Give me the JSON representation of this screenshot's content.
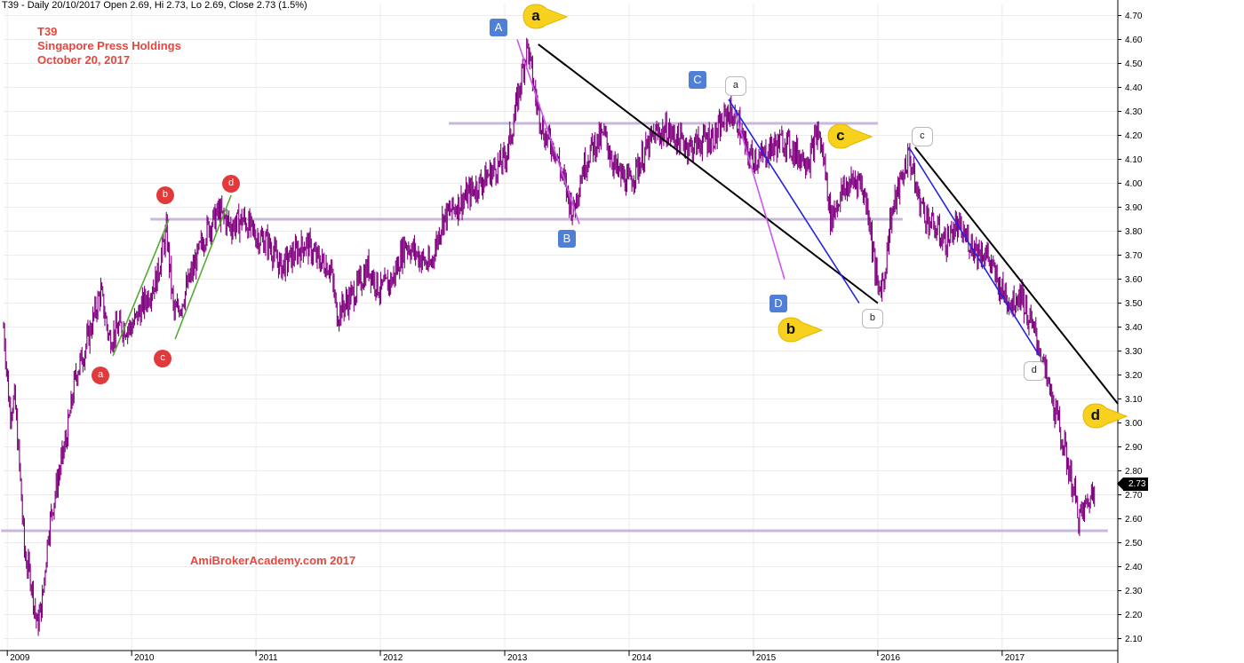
{
  "header": {
    "text": "T39 - Daily 20/10/2017 Open 2.69, Hi 2.73, Lo 2.69, Close 2.73 (1.5%)"
  },
  "title_block": {
    "symbol": "T39",
    "company": "Singapore Press Holdings",
    "date": "October 20, 2017"
  },
  "watermark": "AmiBrokerAcademy.com  2017",
  "last_price": "2.73",
  "chart_data": {
    "type": "line",
    "style": "ohlc-bars",
    "series_color": "#800080",
    "x_tick_labels": [
      "2009",
      "2010",
      "2011",
      "2012",
      "2013",
      "2014",
      "2015",
      "2016",
      "2017"
    ],
    "x_range": [
      2008.97,
      2017.93
    ],
    "ylim": [
      2.05,
      4.75
    ],
    "y_tick_labels": [
      "2.10",
      "2.20",
      "2.30",
      "2.40",
      "2.50",
      "2.60",
      "2.70",
      "2.80",
      "2.90",
      "3.00",
      "3.10",
      "3.20",
      "3.30",
      "3.40",
      "3.50",
      "3.60",
      "3.70",
      "3.80",
      "3.90",
      "4.00",
      "4.10",
      "4.20",
      "4.30",
      "4.40",
      "4.50",
      "4.60",
      "4.70"
    ],
    "grid": true,
    "close": [
      {
        "x": 2008.97,
        "y": 3.4
      },
      {
        "x": 2009.02,
        "y": 3.05
      },
      {
        "x": 2009.06,
        "y": 3.1
      },
      {
        "x": 2009.1,
        "y": 2.8
      },
      {
        "x": 2009.14,
        "y": 2.45
      },
      {
        "x": 2009.19,
        "y": 2.35
      },
      {
        "x": 2009.24,
        "y": 2.15
      },
      {
        "x": 2009.28,
        "y": 2.25
      },
      {
        "x": 2009.33,
        "y": 2.55
      },
      {
        "x": 2009.4,
        "y": 2.75
      },
      {
        "x": 2009.48,
        "y": 2.95
      },
      {
        "x": 2009.55,
        "y": 3.2
      },
      {
        "x": 2009.62,
        "y": 3.3
      },
      {
        "x": 2009.7,
        "y": 3.45
      },
      {
        "x": 2009.75,
        "y": 3.55
      },
      {
        "x": 2009.82,
        "y": 3.35
      },
      {
        "x": 2009.9,
        "y": 3.4
      },
      {
        "x": 2010.0,
        "y": 3.4
      },
      {
        "x": 2010.1,
        "y": 3.5
      },
      {
        "x": 2010.2,
        "y": 3.6
      },
      {
        "x": 2010.28,
        "y": 3.8
      },
      {
        "x": 2010.34,
        "y": 3.45
      },
      {
        "x": 2010.4,
        "y": 3.5
      },
      {
        "x": 2010.5,
        "y": 3.65
      },
      {
        "x": 2010.6,
        "y": 3.8
      },
      {
        "x": 2010.7,
        "y": 3.88
      },
      {
        "x": 2010.8,
        "y": 3.82
      },
      {
        "x": 2010.9,
        "y": 3.85
      },
      {
        "x": 2011.0,
        "y": 3.78
      },
      {
        "x": 2011.1,
        "y": 3.75
      },
      {
        "x": 2011.2,
        "y": 3.65
      },
      {
        "x": 2011.3,
        "y": 3.7
      },
      {
        "x": 2011.4,
        "y": 3.75
      },
      {
        "x": 2011.5,
        "y": 3.68
      },
      {
        "x": 2011.6,
        "y": 3.65
      },
      {
        "x": 2011.65,
        "y": 3.45
      },
      {
        "x": 2011.72,
        "y": 3.5
      },
      {
        "x": 2011.8,
        "y": 3.55
      },
      {
        "x": 2011.9,
        "y": 3.65
      },
      {
        "x": 2012.0,
        "y": 3.55
      },
      {
        "x": 2012.1,
        "y": 3.6
      },
      {
        "x": 2012.2,
        "y": 3.75
      },
      {
        "x": 2012.3,
        "y": 3.7
      },
      {
        "x": 2012.4,
        "y": 3.65
      },
      {
        "x": 2012.5,
        "y": 3.85
      },
      {
        "x": 2012.6,
        "y": 3.9
      },
      {
        "x": 2012.7,
        "y": 3.95
      },
      {
        "x": 2012.8,
        "y": 4.0
      },
      {
        "x": 2012.9,
        "y": 4.05
      },
      {
        "x": 2013.0,
        "y": 4.1
      },
      {
        "x": 2013.05,
        "y": 4.2
      },
      {
        "x": 2013.12,
        "y": 4.4
      },
      {
        "x": 2013.18,
        "y": 4.58
      },
      {
        "x": 2013.25,
        "y": 4.35
      },
      {
        "x": 2013.32,
        "y": 4.2
      },
      {
        "x": 2013.4,
        "y": 4.15
      },
      {
        "x": 2013.48,
        "y": 4.0
      },
      {
        "x": 2013.55,
        "y": 3.88
      },
      {
        "x": 2013.62,
        "y": 4.05
      },
      {
        "x": 2013.7,
        "y": 4.15
      },
      {
        "x": 2013.8,
        "y": 4.2
      },
      {
        "x": 2013.9,
        "y": 4.05
      },
      {
        "x": 2014.0,
        "y": 4.0
      },
      {
        "x": 2014.1,
        "y": 4.1
      },
      {
        "x": 2014.2,
        "y": 4.2
      },
      {
        "x": 2014.3,
        "y": 4.22
      },
      {
        "x": 2014.4,
        "y": 4.18
      },
      {
        "x": 2014.5,
        "y": 4.15
      },
      {
        "x": 2014.6,
        "y": 4.18
      },
      {
        "x": 2014.7,
        "y": 4.2
      },
      {
        "x": 2014.8,
        "y": 4.3
      },
      {
        "x": 2014.88,
        "y": 4.25
      },
      {
        "x": 2014.95,
        "y": 4.12
      },
      {
        "x": 2015.05,
        "y": 4.1
      },
      {
        "x": 2015.15,
        "y": 4.15
      },
      {
        "x": 2015.25,
        "y": 4.18
      },
      {
        "x": 2015.35,
        "y": 4.12
      },
      {
        "x": 2015.45,
        "y": 4.1
      },
      {
        "x": 2015.52,
        "y": 4.22
      },
      {
        "x": 2015.58,
        "y": 4.05
      },
      {
        "x": 2015.62,
        "y": 3.85
      },
      {
        "x": 2015.7,
        "y": 3.95
      },
      {
        "x": 2015.78,
        "y": 4.0
      },
      {
        "x": 2015.85,
        "y": 4.02
      },
      {
        "x": 2015.92,
        "y": 3.9
      },
      {
        "x": 2016.0,
        "y": 3.55
      },
      {
        "x": 2016.05,
        "y": 3.6
      },
      {
        "x": 2016.1,
        "y": 3.85
      },
      {
        "x": 2016.18,
        "y": 4.0
      },
      {
        "x": 2016.25,
        "y": 4.12
      },
      {
        "x": 2016.32,
        "y": 3.95
      },
      {
        "x": 2016.4,
        "y": 3.85
      },
      {
        "x": 2016.48,
        "y": 3.8
      },
      {
        "x": 2016.55,
        "y": 3.75
      },
      {
        "x": 2016.62,
        "y": 3.82
      },
      {
        "x": 2016.7,
        "y": 3.78
      },
      {
        "x": 2016.8,
        "y": 3.72
      },
      {
        "x": 2016.88,
        "y": 3.7
      },
      {
        "x": 2016.95,
        "y": 3.6
      },
      {
        "x": 2017.0,
        "y": 3.55
      },
      {
        "x": 2017.08,
        "y": 3.5
      },
      {
        "x": 2017.15,
        "y": 3.55
      },
      {
        "x": 2017.2,
        "y": 3.45
      },
      {
        "x": 2017.28,
        "y": 3.35
      },
      {
        "x": 2017.35,
        "y": 3.2
      },
      {
        "x": 2017.45,
        "y": 3.0
      },
      {
        "x": 2017.55,
        "y": 2.78
      },
      {
        "x": 2017.62,
        "y": 2.6
      },
      {
        "x": 2017.7,
        "y": 2.68
      },
      {
        "x": 2017.75,
        "y": 2.73
      }
    ],
    "horizontal_lines": [
      {
        "y": 3.85,
        "x_start": 2010.15,
        "x_end": 2016.2
      },
      {
        "y": 4.25,
        "x_start": 2012.55,
        "x_end": 2016.0
      },
      {
        "y": 2.55,
        "x_start": 2008.95,
        "x_end": 2017.85
      }
    ],
    "trend_lines": [
      {
        "color": "#000000",
        "width": 2,
        "from": [
          2013.27,
          4.58
        ],
        "to": [
          2016.0,
          3.5
        ]
      },
      {
        "color": "#000000",
        "width": 2,
        "from": [
          2016.3,
          4.15
        ],
        "to": [
          2017.93,
          3.08
        ]
      },
      {
        "color": "#2323e0",
        "width": 1.6,
        "from": [
          2014.8,
          4.35
        ],
        "to": [
          2015.85,
          3.5
        ]
      },
      {
        "color": "#2323e0",
        "width": 1.6,
        "from": [
          2016.25,
          4.15
        ],
        "to": [
          2017.3,
          3.28
        ]
      },
      {
        "color": "#cc55ee",
        "width": 1.6,
        "from": [
          2013.1,
          4.6
        ],
        "to": [
          2013.6,
          3.83
        ]
      },
      {
        "color": "#cc55ee",
        "width": 1.6,
        "from": [
          2014.85,
          4.3
        ],
        "to": [
          2015.25,
          3.6
        ]
      },
      {
        "color": "#55aa33",
        "width": 1.6,
        "from": [
          2009.85,
          3.28
        ],
        "to": [
          2010.3,
          3.85
        ]
      },
      {
        "color": "#55aa33",
        "width": 1.6,
        "from": [
          2010.35,
          3.35
        ],
        "to": [
          2010.8,
          3.95
        ]
      }
    ],
    "annotations": [
      {
        "text": "A",
        "style": "blue-box",
        "x": 2012.95,
        "y": 4.65
      },
      {
        "text": "B",
        "style": "blue-box",
        "x": 2013.5,
        "y": 3.77
      },
      {
        "text": "C",
        "style": "blue-box",
        "x": 2014.55,
        "y": 4.43
      },
      {
        "text": "D",
        "style": "blue-box",
        "x": 2015.2,
        "y": 3.5
      },
      {
        "text": "a",
        "style": "yellow-bubble",
        "x": 2013.25,
        "y": 4.7
      },
      {
        "text": "b",
        "style": "yellow-bubble",
        "x": 2015.3,
        "y": 3.39
      },
      {
        "text": "c",
        "style": "yellow-bubble",
        "x": 2015.7,
        "y": 4.2
      },
      {
        "text": "d",
        "style": "yellow-bubble",
        "x": 2017.75,
        "y": 3.03
      },
      {
        "text": "a",
        "style": "white-box",
        "x": 2014.85,
        "y": 4.41
      },
      {
        "text": "b",
        "style": "white-box",
        "x": 2015.95,
        "y": 3.44
      },
      {
        "text": "c",
        "style": "white-box",
        "x": 2016.35,
        "y": 4.2
      },
      {
        "text": "d",
        "style": "white-box",
        "x": 2017.25,
        "y": 3.22
      },
      {
        "text": "a",
        "style": "red-dot",
        "x": 2009.75,
        "y": 3.2
      },
      {
        "text": "b",
        "style": "red-dot",
        "x": 2010.27,
        "y": 3.95
      },
      {
        "text": "c",
        "style": "red-dot",
        "x": 2010.25,
        "y": 3.27
      },
      {
        "text": "d",
        "style": "red-dot",
        "x": 2010.8,
        "y": 4.0
      }
    ]
  }
}
